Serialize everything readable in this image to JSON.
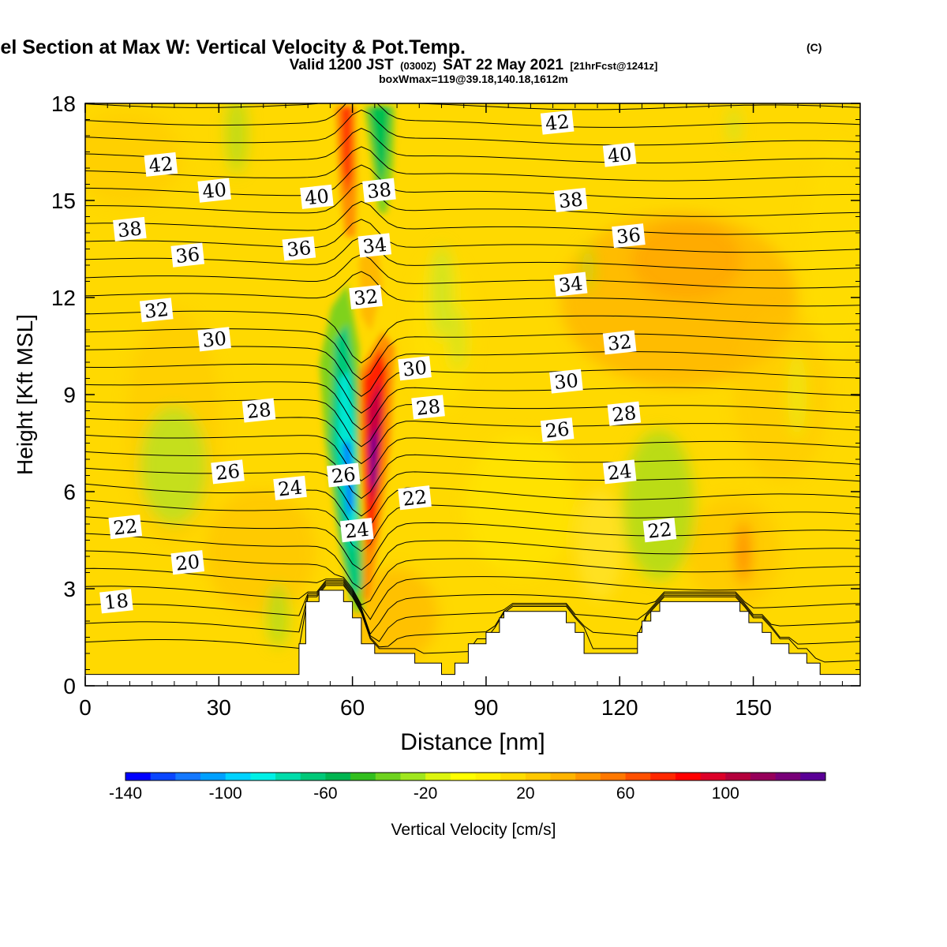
{
  "chart_data": {
    "type": "heatmap",
    "title": "Wind-Parallel Section at Max W: Vertical Velocity & Pot.Temp.",
    "title_mark": "(C)",
    "subtitle_parts": [
      "Valid 1200 JST",
      "(0300Z)",
      "SAT 22 May 2021",
      "[21hrFcst@1241z]"
    ],
    "subtitle2": "boxWmax=119@39.18,140.18,1612m",
    "xlabel": "Distance [nm]",
    "ylabel": "Height [Kft MSL]",
    "xlim": [
      0,
      174
    ],
    "ylim": [
      0,
      18
    ],
    "x_ticks": [
      "0",
      "30",
      "60",
      "90",
      "120",
      "150"
    ],
    "y_ticks": [
      "0",
      "3",
      "6",
      "9",
      "12",
      "15",
      "18"
    ],
    "colorbar": {
      "label": "Vertical Velocity [cm/s]",
      "range": [
        -140,
        140
      ],
      "tick_labels": [
        "-140",
        "-100",
        "-60",
        "-20",
        "20",
        "60",
        "100"
      ],
      "colors": [
        "#0000ff",
        "#0a46ff",
        "#1478ff",
        "#00a0ff",
        "#00d2ff",
        "#00f0e6",
        "#00dcaa",
        "#00c878",
        "#00b450",
        "#32be1e",
        "#6ed21e",
        "#a0e61e",
        "#dcf50f",
        "#ffff00",
        "#fff000",
        "#ffdc00",
        "#ffc800",
        "#ffb400",
        "#ff9600",
        "#ff7800",
        "#ff5000",
        "#ff2800",
        "#ff0000",
        "#dc0028",
        "#b4003c",
        "#96005a",
        "#780078",
        "#5a0096"
      ]
    },
    "theta_labels": [
      {
        "text": "42",
        "x": 17,
        "y": 16.1
      },
      {
        "text": "40",
        "x": 29,
        "y": 15.3
      },
      {
        "text": "38",
        "x": 10,
        "y": 14.1
      },
      {
        "text": "36",
        "x": 23,
        "y": 13.3
      },
      {
        "text": "32",
        "x": 16,
        "y": 11.6
      },
      {
        "text": "30",
        "x": 29,
        "y": 10.7
      },
      {
        "text": "28",
        "x": 39,
        "y": 8.5
      },
      {
        "text": "26",
        "x": 32,
        "y": 6.6
      },
      {
        "text": "24",
        "x": 46,
        "y": 6.1
      },
      {
        "text": "22",
        "x": 9,
        "y": 4.9
      },
      {
        "text": "20",
        "x": 23,
        "y": 3.8
      },
      {
        "text": "18",
        "x": 7,
        "y": 2.6
      },
      {
        "text": "40",
        "x": 52,
        "y": 15.1
      },
      {
        "text": "38",
        "x": 66,
        "y": 15.3
      },
      {
        "text": "36",
        "x": 48,
        "y": 13.5
      },
      {
        "text": "34",
        "x": 65,
        "y": 13.6
      },
      {
        "text": "32",
        "x": 63,
        "y": 12.0
      },
      {
        "text": "30",
        "x": 74,
        "y": 9.8
      },
      {
        "text": "28",
        "x": 77,
        "y": 8.6
      },
      {
        "text": "26",
        "x": 58,
        "y": 6.5
      },
      {
        "text": "24",
        "x": 61,
        "y": 4.8
      },
      {
        "text": "22",
        "x": 74,
        "y": 5.8
      },
      {
        "text": "42",
        "x": 106,
        "y": 17.4
      },
      {
        "text": "40",
        "x": 120,
        "y": 16.4
      },
      {
        "text": "38",
        "x": 109,
        "y": 15.0
      },
      {
        "text": "36",
        "x": 122,
        "y": 13.9
      },
      {
        "text": "34",
        "x": 109,
        "y": 12.4
      },
      {
        "text": "32",
        "x": 120,
        "y": 10.6
      },
      {
        "text": "30",
        "x": 108,
        "y": 9.4
      },
      {
        "text": "28",
        "x": 121,
        "y": 8.4
      },
      {
        "text": "26",
        "x": 106,
        "y": 7.9
      },
      {
        "text": "24",
        "x": 120,
        "y": 6.6
      },
      {
        "text": "22",
        "x": 129,
        "y": 4.8
      }
    ],
    "terrain_kft": [
      [
        0,
        0.35
      ],
      [
        48,
        0.35
      ],
      [
        48,
        1.3
      ],
      [
        49.5,
        1.3
      ],
      [
        49.5,
        2.6
      ],
      [
        52.5,
        2.6
      ],
      [
        52.5,
        2.95
      ],
      [
        58,
        2.95
      ],
      [
        58,
        2.6
      ],
      [
        60,
        2.6
      ],
      [
        60,
        2.1
      ],
      [
        62,
        2.1
      ],
      [
        62,
        1.3
      ],
      [
        65,
        1.3
      ],
      [
        65,
        1.0
      ],
      [
        74,
        1.0
      ],
      [
        74,
        0.7
      ],
      [
        80,
        0.7
      ],
      [
        80,
        0.35
      ],
      [
        83,
        0.35
      ],
      [
        83,
        0.7
      ],
      [
        86,
        0.7
      ],
      [
        86,
        1.3
      ],
      [
        90,
        1.3
      ],
      [
        90,
        1.65
      ],
      [
        93,
        1.65
      ],
      [
        93,
        2.1
      ],
      [
        94,
        2.1
      ],
      [
        94,
        2.3
      ],
      [
        108,
        2.3
      ],
      [
        108,
        1.95
      ],
      [
        110,
        1.95
      ],
      [
        110,
        1.65
      ],
      [
        112,
        1.65
      ],
      [
        112,
        1.0
      ],
      [
        124,
        1.0
      ],
      [
        124,
        1.65
      ],
      [
        125,
        1.65
      ],
      [
        125,
        2.0
      ],
      [
        127,
        2.0
      ],
      [
        127,
        2.3
      ],
      [
        129,
        2.3
      ],
      [
        129,
        2.6
      ],
      [
        147,
        2.6
      ],
      [
        147,
        2.3
      ],
      [
        149,
        2.3
      ],
      [
        149,
        1.95
      ],
      [
        152,
        1.95
      ],
      [
        152,
        1.65
      ],
      [
        154,
        1.65
      ],
      [
        154,
        1.3
      ],
      [
        158,
        1.3
      ],
      [
        158,
        1.0
      ],
      [
        162,
        1.0
      ],
      [
        162,
        0.7
      ],
      [
        165,
        0.7
      ],
      [
        165,
        0.35
      ],
      [
        174,
        0.35
      ]
    ]
  }
}
